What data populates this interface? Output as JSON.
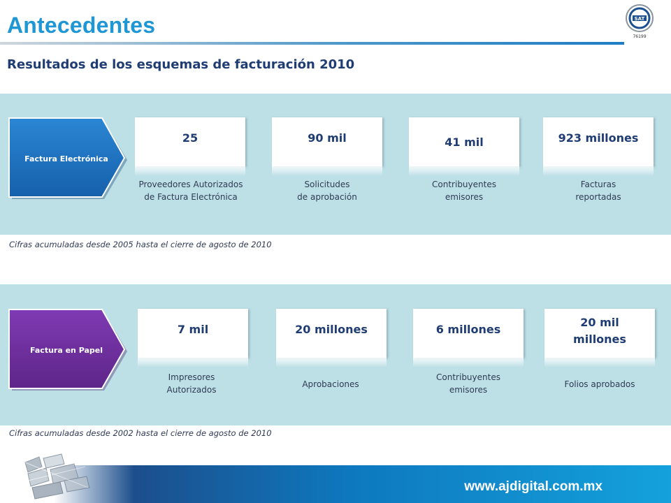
{
  "header": {
    "title": "Antecedentes",
    "logo_icon": "sat-seal-icon",
    "logo_text": "SAT",
    "logo_number": "76199"
  },
  "subtitle": "Resultados de los esquemas de facturación 2010",
  "colors": {
    "accent": "#1f97d4",
    "navy": "#1f3c73",
    "panel": "#bde0e6",
    "electronica": "#1f72c0",
    "papel": "#6e2f9e"
  },
  "factura_electronica": {
    "label": "Factura Electrónica",
    "stats": [
      {
        "value": "25",
        "caption": [
          "Proveedores Autorizados",
          "de Factura Electrónica"
        ]
      },
      {
        "value": "90 mil",
        "caption": [
          "Solicitudes",
          "de aprobación"
        ]
      },
      {
        "value": "41 mil",
        "caption": [
          "Contribuyentes",
          "emisores"
        ]
      },
      {
        "value": "923 millones",
        "caption": [
          "Facturas",
          "reportadas"
        ]
      }
    ],
    "note": "Cifras acumuladas desde 2005 hasta el cierre de agosto de 2010"
  },
  "factura_papel": {
    "label": "Factura  en Papel",
    "stats": [
      {
        "value": "7 mil",
        "caption": [
          "Impresores",
          "Autorizados"
        ]
      },
      {
        "value": "20 millones",
        "caption": [
          "Aprobaciones"
        ]
      },
      {
        "value": "6 millones",
        "caption": [
          "Contribuyentes",
          "emisores"
        ]
      },
      {
        "value": [
          "20 mil",
          "millones"
        ],
        "caption": [
          "Folios aprobados"
        ]
      }
    ],
    "note": "Cifras acumuladas desde 2002 hasta el cierre de agosto de 2010"
  },
  "footer": {
    "url": "www.ajdigital.com.mx",
    "logo_icon": "ajdigital-logo-icon"
  }
}
